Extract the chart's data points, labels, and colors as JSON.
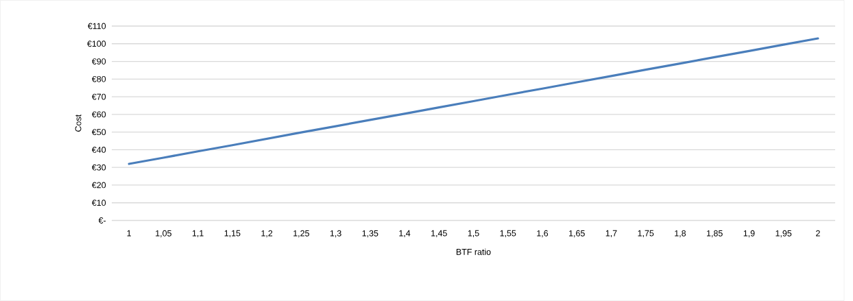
{
  "chart_data": {
    "type": "line",
    "xlabel": "BTF ratio",
    "ylabel": "Cost",
    "categories": [
      "1",
      "1,05",
      "1,1",
      "1,15",
      "1,2",
      "1,25",
      "1,3",
      "1,35",
      "1,4",
      "1,45",
      "1,5",
      "1,55",
      "1,6",
      "1,65",
      "1,7",
      "1,75",
      "1,8",
      "1,85",
      "1,9",
      "1,95",
      "2"
    ],
    "series": [
      {
        "color": "#4a7ebb",
        "values": [
          32,
          35.5,
          39.1,
          42.6,
          46.2,
          49.8,
          53.3,
          56.9,
          60.4,
          64,
          67.5,
          71.1,
          74.6,
          78.2,
          81.7,
          85.3,
          88.8,
          92.4,
          95.9,
          99.5,
          103
        ]
      }
    ],
    "ylim": [
      0,
      110
    ],
    "yticks": [
      {
        "value": 0,
        "label": "€-"
      },
      {
        "value": 10,
        "label": "€10"
      },
      {
        "value": 20,
        "label": "€20"
      },
      {
        "value": 30,
        "label": "€30"
      },
      {
        "value": 40,
        "label": "€40"
      },
      {
        "value": 50,
        "label": "€50"
      },
      {
        "value": 60,
        "label": "€60"
      },
      {
        "value": 70,
        "label": "€70"
      },
      {
        "value": 80,
        "label": "€80"
      },
      {
        "value": 90,
        "label": "€90"
      },
      {
        "value": 100,
        "label": "€100"
      },
      {
        "value": 110,
        "label": "€110"
      }
    ],
    "grid": "y",
    "marker": "none",
    "line_style": "solid"
  }
}
